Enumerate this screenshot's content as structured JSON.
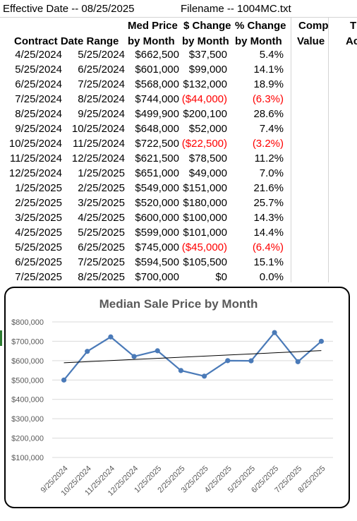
{
  "header": {
    "effective_date": "Effective Date -- 08/25/2025",
    "filename": "Filename -- 1004MC.txt"
  },
  "columns": {
    "contract_date_range": "Contract Date Range",
    "med_price": [
      "Med Price",
      "by Month"
    ],
    "dollar_change": [
      "$ Change",
      "by Month"
    ],
    "pct_change": [
      "% Change",
      "by Month"
    ],
    "comp_value": [
      "Comp",
      "Value"
    ],
    "cut_off": [
      "T",
      "Ac"
    ]
  },
  "rows": [
    {
      "start": "4/25/2024",
      "end": "5/25/2024",
      "price": "$662,500",
      "change": "$37,500",
      "pct": "5.4%",
      "neg": false
    },
    {
      "start": "5/25/2024",
      "end": "6/25/2024",
      "price": "$601,000",
      "change": "$99,000",
      "pct": "14.1%",
      "neg": false
    },
    {
      "start": "6/25/2024",
      "end": "7/25/2024",
      "price": "$568,000",
      "change": "$132,000",
      "pct": "18.9%",
      "neg": false
    },
    {
      "start": "7/25/2024",
      "end": "8/25/2024",
      "price": "$744,000",
      "change": "($44,000)",
      "pct": "(6.3%)",
      "neg": true
    },
    {
      "start": "8/25/2024",
      "end": "9/25/2024",
      "price": "$499,900",
      "change": "$200,100",
      "pct": "28.6%",
      "neg": false
    },
    {
      "start": "9/25/2024",
      "end": "10/25/2024",
      "price": "$648,000",
      "change": "$52,000",
      "pct": "7.4%",
      "neg": false
    },
    {
      "start": "10/25/2024",
      "end": "11/25/2024",
      "price": "$722,500",
      "change": "($22,500)",
      "pct": "(3.2%)",
      "neg": true
    },
    {
      "start": "11/25/2024",
      "end": "12/25/2024",
      "price": "$621,500",
      "change": "$78,500",
      "pct": "11.2%",
      "neg": false
    },
    {
      "start": "12/25/2024",
      "end": "1/25/2025",
      "price": "$651,000",
      "change": "$49,000",
      "pct": "7.0%",
      "neg": false
    },
    {
      "start": "1/25/2025",
      "end": "2/25/2025",
      "price": "$549,000",
      "change": "$151,000",
      "pct": "21.6%",
      "neg": false
    },
    {
      "start": "2/25/2025",
      "end": "3/25/2025",
      "price": "$520,000",
      "change": "$180,000",
      "pct": "25.7%",
      "neg": false
    },
    {
      "start": "3/25/2025",
      "end": "4/25/2025",
      "price": "$600,000",
      "change": "$100,000",
      "pct": "14.3%",
      "neg": false
    },
    {
      "start": "4/25/2025",
      "end": "5/25/2025",
      "price": "$599,000",
      "change": "$101,000",
      "pct": "14.4%",
      "neg": false
    },
    {
      "start": "5/25/2025",
      "end": "6/25/2025",
      "price": "$745,000",
      "change": "($45,000)",
      "pct": "(6.4%)",
      "neg": true
    },
    {
      "start": "6/25/2025",
      "end": "7/25/2025",
      "price": "$594,500",
      "change": "$105,500",
      "pct": "15.1%",
      "neg": false
    },
    {
      "start": "7/25/2025",
      "end": "8/25/2025",
      "price": "$700,000",
      "change": "$0",
      "pct": "0.0%",
      "neg": false
    }
  ],
  "chart_data": {
    "type": "line",
    "title": "Median Sale Price by Month",
    "xlabel": "",
    "ylabel": "",
    "ylim": [
      100000,
      800000
    ],
    "y_ticks": [
      "$100,000",
      "$200,000",
      "$300,000",
      "$400,000",
      "$500,000",
      "$600,000",
      "$700,000",
      "$800,000"
    ],
    "y_tick_values": [
      100000,
      200000,
      300000,
      400000,
      500000,
      600000,
      700000,
      800000
    ],
    "categories": [
      "9/25/2024",
      "10/25/2024",
      "11/25/2024",
      "12/25/2024",
      "1/25/2025",
      "2/25/2025",
      "3/25/2025",
      "4/25/2025",
      "5/25/2025",
      "6/25/2025",
      "7/25/2025",
      "8/25/2025"
    ],
    "series": [
      {
        "values": [
          499900,
          648000,
          722500,
          621500,
          651000,
          549000,
          520000,
          600000,
          599000,
          745000,
          594500,
          700000
        ],
        "color": "#4a7ab8"
      }
    ],
    "trendline": {
      "start": 589000,
      "end": 652000,
      "color": "#000000"
    },
    "grid": true,
    "legend": "none"
  }
}
